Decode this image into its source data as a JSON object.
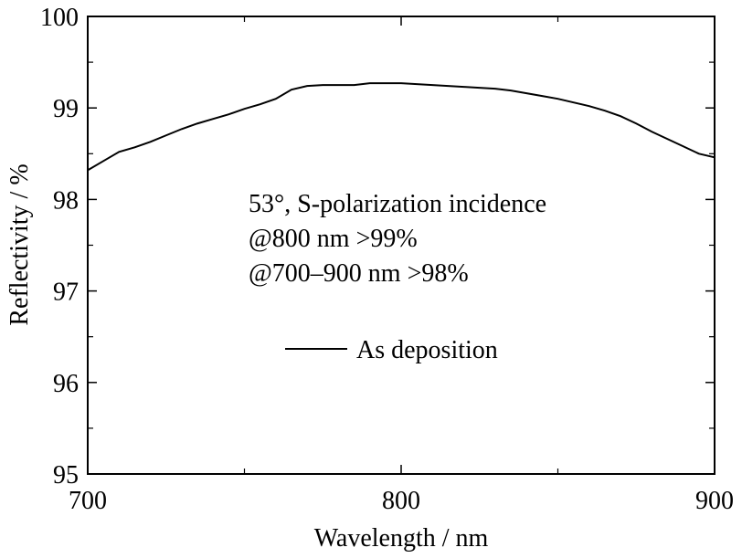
{
  "chart_data": {
    "type": "line",
    "xlabel": "Wavelength / nm",
    "ylabel": "Reflectivity / %",
    "xlim": [
      700,
      900
    ],
    "ylim": [
      95,
      100
    ],
    "xticks": [
      700,
      800,
      900
    ],
    "xticks_minor": [
      750,
      850
    ],
    "yticks": [
      95,
      96,
      97,
      98,
      99,
      100
    ],
    "yticks_minor": [
      95.5,
      96.5,
      97.5,
      98.5,
      99.5
    ],
    "xtick_labels": [
      "700",
      "800",
      "900"
    ],
    "ytick_labels": [
      "95",
      "96",
      "97",
      "98",
      "99",
      "100"
    ],
    "annotations": [
      "53°, S-polarization incidence",
      "@800 nm >99%",
      "@700–900 nm >98%"
    ],
    "legend": {
      "placement": "center-left",
      "entries": [
        "As deposition"
      ]
    },
    "grid": false,
    "series": [
      {
        "name": "As deposition",
        "color": "#000000",
        "x": [
          700,
          705,
          710,
          715,
          720,
          725,
          730,
          735,
          740,
          745,
          750,
          755,
          760,
          765,
          770,
          775,
          780,
          785,
          790,
          795,
          800,
          805,
          810,
          815,
          820,
          825,
          830,
          835,
          840,
          845,
          850,
          855,
          860,
          865,
          870,
          875,
          880,
          885,
          890,
          895,
          900
        ],
        "y": [
          98.32,
          98.42,
          98.52,
          98.57,
          98.63,
          98.7,
          98.77,
          98.83,
          98.88,
          98.93,
          98.99,
          99.04,
          99.1,
          99.2,
          99.24,
          99.25,
          99.25,
          99.25,
          99.27,
          99.27,
          99.27,
          99.26,
          99.25,
          99.24,
          99.23,
          99.22,
          99.21,
          99.19,
          99.16,
          99.13,
          99.1,
          99.06,
          99.02,
          98.97,
          98.91,
          98.83,
          98.74,
          98.66,
          98.58,
          98.5,
          98.46
        ]
      }
    ]
  }
}
